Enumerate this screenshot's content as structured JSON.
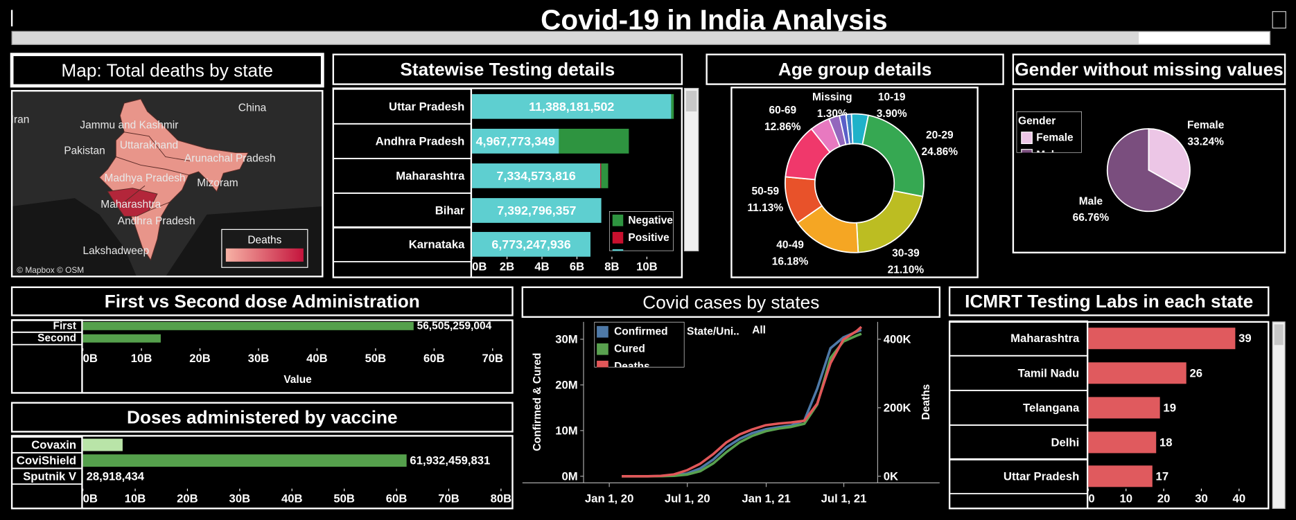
{
  "title": "Covid-19 in India Analysis",
  "chart_data": [
    {
      "type": "map",
      "title": "Map: Total deaths by state",
      "labels": [
        "Iran",
        "China",
        "Pakistan",
        "Jammu and Kashmir",
        "Uttarakhand",
        "Arunachal Pradesh",
        "Madhya Pradesh",
        "Mizoram",
        "Maharashtra",
        "Andhra Pradesh",
        "Lakshadweep"
      ],
      "legend_title": "Deaths",
      "attribution": "© Mapbox © OSM"
    },
    {
      "type": "bar",
      "orientation": "horizontal",
      "stacked": true,
      "title": "Statewise Testing details",
      "categories": [
        "Uttar Pradesh",
        "Andhra Pradesh",
        "Maharashtra",
        "Bihar",
        "Karnataka"
      ],
      "series": [
        {
          "color": "#5ecfd0",
          "values": [
            11388181502,
            4967773349,
            7334573816,
            7392796357,
            6773247936
          ],
          "value_labels": [
            "11,388,181,502",
            "4,967,773,349",
            "7,334,573,816",
            "7,392,796,357",
            "6,773,247,936"
          ]
        },
        {
          "name": "Positive",
          "color": "#c8102e",
          "values": [
            0,
            0,
            50000000,
            0,
            0
          ]
        },
        {
          "name": "Negative",
          "color": "#2e9440",
          "values": [
            150000000,
            4000000000,
            400000000,
            0,
            0
          ]
        }
      ],
      "xlim": [
        0,
        12000000000
      ],
      "xticks": [
        {
          "value": 0,
          "label": "0B"
        },
        {
          "value": 2000000000,
          "label": "2B"
        },
        {
          "value": 4000000000,
          "label": "4B"
        },
        {
          "value": 6000000000,
          "label": "6B"
        },
        {
          "value": 8000000000,
          "label": "8B"
        },
        {
          "value": 10000000000,
          "label": "10B"
        }
      ]
    },
    {
      "type": "donut",
      "title": "Age group details",
      "categories": [
        "Missing",
        "10-19",
        "20-29",
        "30-39",
        "40-49",
        "50-59",
        "60-69",
        null,
        null,
        null
      ],
      "values": [
        1.3,
        3.9,
        24.86,
        21.1,
        16.18,
        11.13,
        12.86,
        4.67,
        2.5,
        1.5
      ],
      "value_labels": [
        "1.30%",
        "3.90%",
        "24.86%",
        "21.10%",
        "16.18%",
        "11.13%",
        "12.86%",
        null,
        null,
        null
      ],
      "colors": [
        "#3d7fc4",
        "#1fb2c9",
        "#36a852",
        "#bcbd22",
        "#f5a623",
        "#e8522a",
        "#f0386b",
        "#e879c0",
        "#9467bd",
        "#5a5fc8"
      ]
    },
    {
      "type": "pie",
      "title": "Gender without missing values",
      "categories": [
        "Female",
        "Male"
      ],
      "values": [
        33.24,
        66.76
      ],
      "value_labels": [
        "33.24%",
        "66.76%"
      ],
      "colors": [
        "#ecc6e6",
        "#7a4e7e"
      ],
      "legend_title": "Gender"
    },
    {
      "type": "bar",
      "orientation": "horizontal",
      "title": "First vs Second dose Administration",
      "categories": [
        "First",
        "Second"
      ],
      "values": [
        56505259004,
        13300000000
      ],
      "value_labels": [
        "56,505,259,004",
        null
      ],
      "color": "#55a04c",
      "xlim": [
        0,
        73400000000
      ],
      "xticks": [
        {
          "value": 0,
          "label": "0B"
        },
        {
          "value": 10000000000,
          "label": "10B"
        },
        {
          "value": 20000000000,
          "label": "20B"
        },
        {
          "value": 30000000000,
          "label": "30B"
        },
        {
          "value": 40000000000,
          "label": "40B"
        },
        {
          "value": 50000000000,
          "label": "50B"
        },
        {
          "value": 60000000000,
          "label": "60B"
        },
        {
          "value": 70000000000,
          "label": "70B"
        }
      ],
      "xlabel": "Value"
    },
    {
      "type": "bar",
      "orientation": "horizontal",
      "title": "Doses administered by vaccine",
      "categories": [
        "Covaxin",
        "CoviShield",
        "Sputnik V"
      ],
      "values": [
        7600000000,
        61932459831,
        28918434
      ],
      "value_labels": [
        null,
        "61,932,459,831",
        "28,918,434"
      ],
      "colors": [
        "#b9e4a8",
        "#55a04c",
        "#55a04c"
      ],
      "xlim": [
        0,
        82200000000
      ],
      "xticks": [
        {
          "value": 0,
          "label": "0B"
        },
        {
          "value": 10000000000,
          "label": "10B"
        },
        {
          "value": 20000000000,
          "label": "20B"
        },
        {
          "value": 30000000000,
          "label": "30B"
        },
        {
          "value": 40000000000,
          "label": "40B"
        },
        {
          "value": 50000000000,
          "label": "50B"
        },
        {
          "value": 60000000000,
          "label": "60B"
        },
        {
          "value": 70000000000,
          "label": "70B"
        },
        {
          "value": 80000000000,
          "label": "80B"
        }
      ]
    },
    {
      "type": "line",
      "title": "Covid cases by states",
      "x": [
        "2020-01-30",
        "2020-03-31",
        "2020-04-30",
        "2020-05-31",
        "2020-06-30",
        "2020-07-31",
        "2020-08-31",
        "2020-09-30",
        "2020-10-31",
        "2020-11-30",
        "2020-12-31",
        "2021-01-31",
        "2021-02-28",
        "2021-03-31",
        "2021-04-30",
        "2021-05-31",
        "2021-06-30",
        "2021-07-31",
        "2021-08-11"
      ],
      "series": [
        {
          "name": "Confirmed",
          "color": "#4e79a7",
          "values": [
            1,
            1397,
            34000,
            190000,
            590000,
            1700000,
            3690000,
            6310000,
            8180000,
            9460000,
            10290000,
            10750000,
            11110000,
            12220000,
            19160000,
            28050000,
            30410000,
            31660000,
            32030000
          ]
        },
        {
          "name": "Cured",
          "color": "#59a14f",
          "values": [
            0,
            120,
            9000,
            90000,
            350000,
            1100000,
            2840000,
            5270000,
            7430000,
            8850000,
            9860000,
            10450000,
            10800000,
            11500000,
            15700000,
            25900000,
            29500000,
            30800000,
            31200000
          ]
        },
        {
          "name": "Deaths",
          "color": "#e15759",
          "axis": "y2",
          "values": [
            0,
            35,
            1100,
            5400,
            17400,
            36500,
            65300,
            98700,
            122000,
            137000,
            149000,
            154000,
            157000,
            162000,
            212000,
            330000,
            399000,
            424000,
            436000
          ]
        }
      ],
      "xlim": [
        "2019-11-02",
        "2021-09-18"
      ],
      "xticks": [
        {
          "value": "2020-01-01",
          "label": "Jan 1, 20"
        },
        {
          "value": "2020-07-01",
          "label": "Jul 1, 20"
        },
        {
          "value": "2021-01-01",
          "label": "Jan 1, 21"
        },
        {
          "value": "2021-07-01",
          "label": "Jul 1, 21"
        }
      ],
      "ylim": [
        -1450000,
        33800000
      ],
      "yticks": [
        {
          "value": 0,
          "label": "0M"
        },
        {
          "value": 10000000,
          "label": "10M"
        },
        {
          "value": 20000000,
          "label": "20M"
        },
        {
          "value": 30000000,
          "label": "30M"
        }
      ],
      "y2lim": [
        -19300,
        450600
      ],
      "y2ticks": [
        {
          "value": 0,
          "label": "0K"
        },
        {
          "value": 200000,
          "label": "200K"
        },
        {
          "value": 400000,
          "label": "400K"
        }
      ],
      "ylabel": "Confirmed & Cured",
      "y2label": "Deaths",
      "filter_label": "State/Uni..",
      "filter_value": "All"
    },
    {
      "type": "bar",
      "orientation": "horizontal",
      "title": "ICMRT Testing Labs in each state",
      "categories": [
        "Maharashtra",
        "Tamil Nadu",
        "Telangana",
        "Delhi",
        "Uttar Pradesh"
      ],
      "values": [
        39,
        26,
        19,
        18,
        17
      ],
      "color": "#e05a5e",
      "xlim": [
        0,
        47.8
      ],
      "xticks": [
        0,
        10,
        20,
        30,
        40
      ]
    }
  ]
}
